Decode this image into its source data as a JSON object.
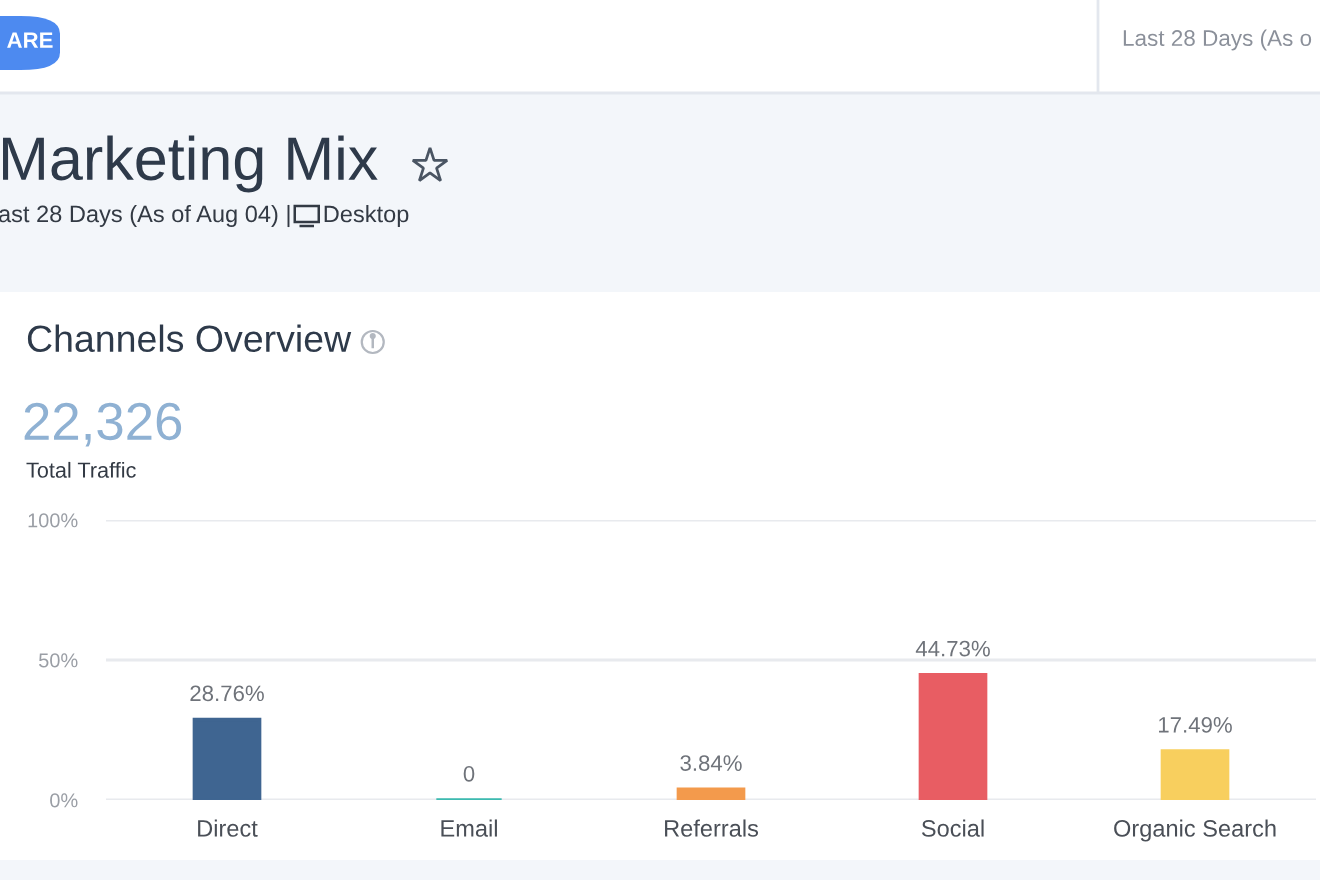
{
  "chart_data": {
    "type": "bar",
    "title": "Marketing Mix",
    "subtitle": "ast 28 Days (As of Aug 04) |",
    "annotations": [
      "ARE",
      "Last 28 Days (As o",
      "Desktop",
      "Channels Overview",
      "22,326",
      "Total Traffic"
    ],
    "categories": [
      "Direct",
      "Email",
      "Referrals",
      "Social",
      "Organic Search"
    ],
    "values": [
      28.76,
      0,
      3.84,
      44.73,
      17.49
    ],
    "colors": [
      "#3f6591",
      "#3dbab0",
      "#f39a4c",
      "#e85d63",
      "#f8cf5e"
    ],
    "value_labels": [
      "28.76%",
      "0",
      "3.84%",
      "44.73%",
      "17.49%"
    ],
    "ylim": [
      0,
      100
    ],
    "yticks": [
      {
        "value": 0,
        "label": "0%"
      },
      {
        "value": 50,
        "label": "50%"
      },
      {
        "value": 100,
        "label": "100%"
      }
    ],
    "grid": "y",
    "legend": false
  }
}
